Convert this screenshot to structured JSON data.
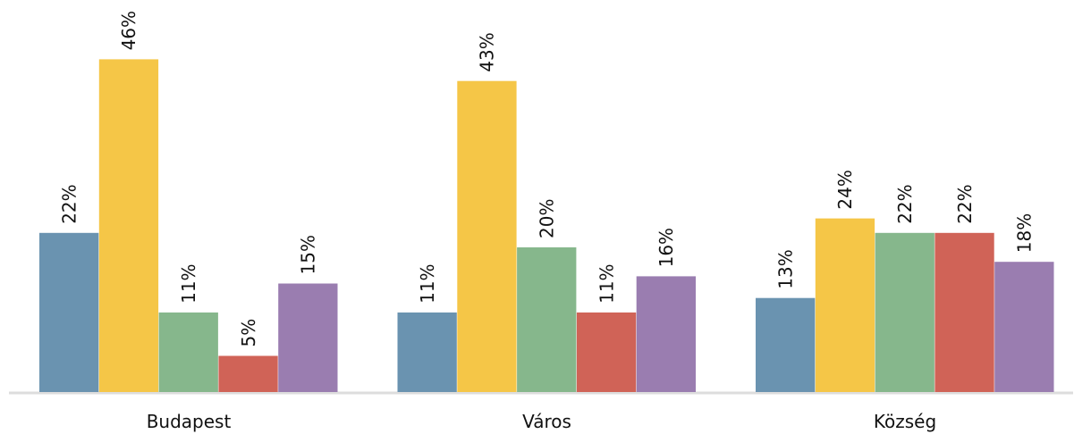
{
  "chart_data": {
    "type": "bar",
    "categories": [
      "Budapest",
      "Város",
      "Község"
    ],
    "series": [
      {
        "color": "#6a93b0",
        "values": [
          22,
          11,
          13
        ],
        "value_labels": [
          "22%",
          "11%",
          "13%"
        ]
      },
      {
        "color": "#f5c647",
        "values": [
          46,
          43,
          24
        ],
        "value_labels": [
          "46%",
          "43%",
          "24%"
        ]
      },
      {
        "color": "#86b78c",
        "values": [
          11,
          20,
          22
        ],
        "value_labels": [
          "11%",
          "20%",
          "22%"
        ]
      },
      {
        "color": "#d06357",
        "values": [
          5,
          11,
          22
        ],
        "value_labels": [
          "5%",
          "11%",
          "22%"
        ]
      },
      {
        "color": "#9a7db0",
        "values": [
          15,
          16,
          18
        ],
        "value_labels": [
          "15%",
          "16%",
          "18%"
        ]
      }
    ]
  }
}
